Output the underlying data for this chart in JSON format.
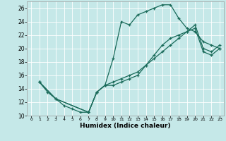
{
  "xlabel": "Humidex (Indice chaleur)",
  "bg_color": "#c5e8e8",
  "grid_color": "#ffffff",
  "line_color": "#1a6b5a",
  "xlim": [
    -0.5,
    23.5
  ],
  "ylim": [
    10,
    27
  ],
  "xticks": [
    0,
    1,
    2,
    3,
    4,
    5,
    6,
    7,
    8,
    9,
    10,
    11,
    12,
    13,
    14,
    15,
    16,
    17,
    18,
    19,
    20,
    21,
    22,
    23
  ],
  "yticks": [
    10,
    12,
    14,
    16,
    18,
    20,
    22,
    24,
    26
  ],
  "line1_x": [
    1,
    2,
    3,
    4,
    5,
    6,
    7,
    8,
    9,
    10,
    11,
    12,
    13,
    14,
    15,
    16,
    17,
    18,
    19,
    20,
    21,
    22,
    23
  ],
  "line1_y": [
    15,
    13.5,
    12.5,
    11.5,
    11.0,
    10.5,
    10.5,
    13.5,
    14.5,
    18.5,
    24,
    23.5,
    25,
    25.5,
    26,
    26.5,
    26.5,
    24.5,
    23.0,
    22.5,
    21.0,
    20.5,
    20.0
  ],
  "line2_x": [
    1,
    3,
    7,
    8,
    9,
    10,
    11,
    12,
    13,
    14,
    15,
    16,
    17,
    18,
    19,
    20,
    21,
    22,
    23
  ],
  "line2_y": [
    15,
    12.5,
    10.5,
    13.5,
    14.5,
    14.5,
    15.0,
    15.5,
    16.0,
    17.5,
    19.0,
    20.5,
    21.5,
    22.0,
    22.5,
    23.0,
    19.5,
    19.0,
    20.0
  ],
  "line3_x": [
    1,
    3,
    7,
    8,
    9,
    10,
    11,
    12,
    13,
    14,
    15,
    16,
    17,
    18,
    19,
    20,
    21,
    22,
    23
  ],
  "line3_y": [
    15,
    12.5,
    10.5,
    13.5,
    14.5,
    15.0,
    15.5,
    16.0,
    16.5,
    17.5,
    18.5,
    19.5,
    20.5,
    21.5,
    22.5,
    23.5,
    20.0,
    19.5,
    20.5
  ]
}
